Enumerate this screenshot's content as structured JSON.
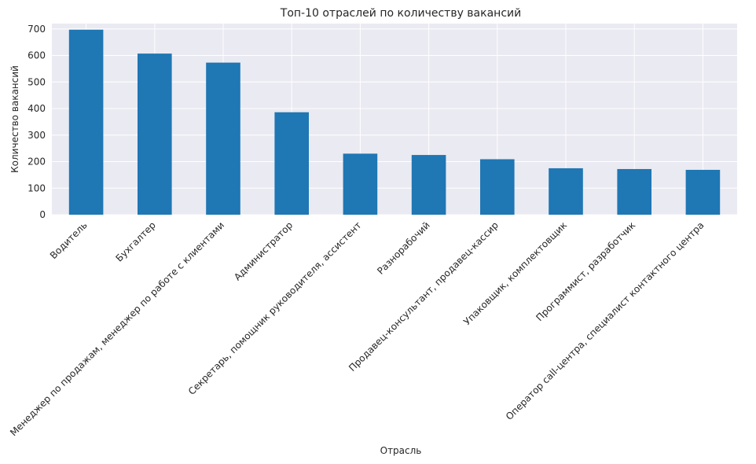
{
  "chart_data": {
    "type": "bar",
    "title": "Топ-10 отраслей по количеству вакансий",
    "xlabel": "Отрасль",
    "ylabel": "Количество вакансий",
    "ylim": [
      0,
      720
    ],
    "yticks": [
      0,
      100,
      200,
      300,
      400,
      500,
      600,
      700
    ],
    "grid": true,
    "categories": [
      "Водитель",
      "Бухгалтер",
      "Менеджер по продажам, менеджер по работе с клиентами",
      "Администратор",
      "Секретарь, помощник руководителя, ассистент",
      "Разнорабочий",
      "Продавец-консультант, продавец-кассир",
      "Упаковщик, комплектовщик",
      "Программист, разработчик",
      "Оператор call-центра, специалист контактного центра"
    ],
    "values": [
      697,
      607,
      573,
      386,
      230,
      225,
      209,
      175,
      172,
      169
    ],
    "colors": {
      "bar": "#1f77b4",
      "plot_bg": "#eaeaf2",
      "grid": "#ffffff"
    }
  }
}
